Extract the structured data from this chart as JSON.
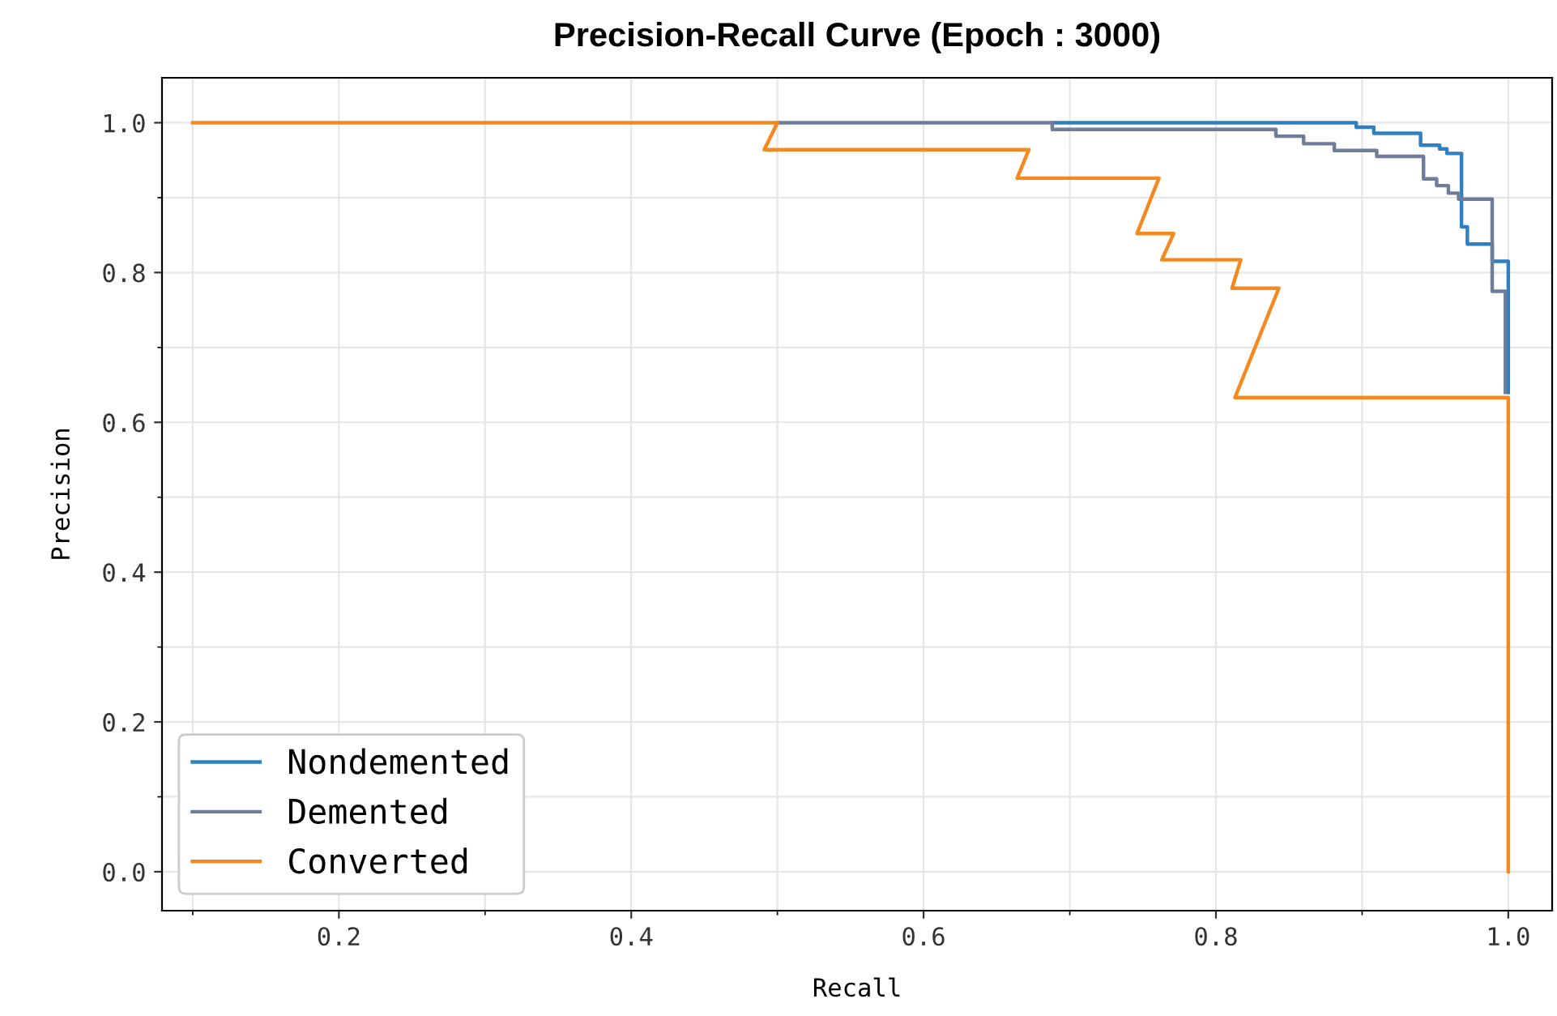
{
  "chart_data": {
    "type": "line",
    "title": "Precision-Recall Curve (Epoch : 3000)",
    "xlabel": "Recall",
    "ylabel": "Precision",
    "xlim": [
      0.079,
      1.03
    ],
    "ylim": [
      -0.052,
      1.06
    ],
    "xticks": [
      0.2,
      0.4,
      0.6,
      0.8,
      {
        "value": 1,
        "label": "1.0"
      }
    ],
    "yticks": [
      {
        "value": 0,
        "label": "0.0"
      },
      0.2,
      0.4,
      0.6,
      0.8,
      {
        "value": 1,
        "label": "1.0"
      }
    ],
    "grid": true,
    "legend": "bottom left",
    "marker": "none",
    "line_style": "solid",
    "series": [
      {
        "name": "Nondemented",
        "color": "#2f7fc1",
        "x": [
          0.688,
          0.896,
          0.896,
          0.908,
          0.908,
          0.94,
          0.94,
          0.953,
          0.953,
          0.958,
          0.958,
          0.968,
          0.968,
          0.972,
          0.972,
          0.989,
          0.989,
          1.0,
          1.0
        ],
        "values": [
          1.0,
          1.0,
          0.994,
          0.994,
          0.986,
          0.986,
          0.97,
          0.97,
          0.965,
          0.965,
          0.959,
          0.959,
          0.861,
          0.861,
          0.838,
          0.838,
          0.815,
          0.815,
          0.64
        ]
      },
      {
        "name": "Demented",
        "color": "#6e7d99",
        "x": [
          0.5,
          0.688,
          0.688,
          0.841,
          0.841,
          0.86,
          0.86,
          0.881,
          0.881,
          0.91,
          0.91,
          0.942,
          0.942,
          0.951,
          0.951,
          0.959,
          0.959,
          0.966,
          0.966,
          0.989,
          0.989,
          0.998,
          0.998
        ],
        "values": [
          1.0,
          1.0,
          0.991,
          0.991,
          0.982,
          0.982,
          0.972,
          0.972,
          0.963,
          0.963,
          0.955,
          0.955,
          0.925,
          0.925,
          0.916,
          0.916,
          0.906,
          0.906,
          0.898,
          0.898,
          0.775,
          0.775,
          0.64
        ]
      },
      {
        "name": "Converted",
        "color": "#f5891f",
        "x": [
          0.1,
          0.5,
          0.491,
          0.672,
          0.664,
          0.761,
          0.746,
          0.771,
          0.763,
          0.817,
          0.811,
          0.843,
          0.813,
          1.0,
          1.0
        ],
        "values": [
          1.0,
          1.0,
          0.964,
          0.964,
          0.926,
          0.926,
          0.852,
          0.852,
          0.817,
          0.817,
          0.779,
          0.779,
          0.633,
          0.633,
          0.0
        ]
      }
    ]
  }
}
